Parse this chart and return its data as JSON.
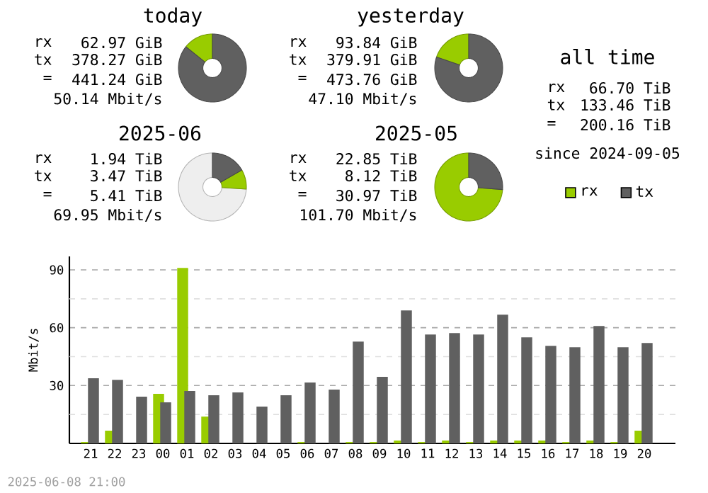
{
  "chart_data": [
    {
      "type": "donut",
      "title": "today",
      "categories": [
        null,
        null
      ],
      "values": [
        14.27,
        85.73
      ],
      "colors": [
        "#99cc00",
        "#606060"
      ],
      "annotations": [
        "rx",
        "62.97 GiB",
        "tx",
        "378.27 GiB",
        "=",
        "441.24 GiB",
        "50.14 Mbit/s"
      ]
    },
    {
      "type": "donut",
      "title": "yesterday",
      "categories": [
        null,
        null
      ],
      "values": [
        19.81,
        80.19
      ],
      "colors": [
        "#99cc00",
        "#606060"
      ],
      "annotations": [
        "rx",
        "93.84 GiB",
        "tx",
        "379.91 GiB",
        "=",
        "473.76 GiB",
        "47.10 Mbit/s"
      ]
    },
    {
      "type": "other",
      "title": "all time",
      "annotations": [
        "rx",
        "66.70 TiB",
        "tx",
        "133.46 TiB",
        "=",
        "200.16 TiB",
        "since 2024-09-05"
      ]
    },
    {
      "type": "donut",
      "title": "2025-06",
      "categories": [
        null,
        null,
        null
      ],
      "values": [
        74.0,
        9.3,
        16.7
      ],
      "colors": [
        "#eeeeee",
        "#99cc00",
        "#606060"
      ],
      "annotations": [
        "rx",
        "1.94 TiB",
        "tx",
        "3.47 TiB",
        "=",
        "5.41 TiB",
        "69.95 Mbit/s"
      ]
    },
    {
      "type": "donut",
      "title": "2025-05",
      "categories": [
        null,
        null
      ],
      "values": [
        73.78,
        26.22
      ],
      "colors": [
        "#99cc00",
        "#606060"
      ],
      "annotations": [
        "rx",
        "22.85 TiB",
        "tx",
        "8.12 TiB",
        "=",
        "30.97 TiB",
        "101.70 Mbit/s"
      ]
    },
    {
      "type": "bar",
      "ylabel": "Mbit/s",
      "categories": [
        "21",
        "22",
        "23",
        "00",
        "01",
        "02",
        "03",
        "04",
        "05",
        "06",
        "07",
        "08",
        "09",
        "10",
        "11",
        "12",
        "13",
        "14",
        "15",
        "16",
        "17",
        "18",
        "19",
        "20"
      ],
      "series": [
        {
          "name": "rx",
          "color": "#99cc00",
          "values": [
            0.7,
            6.6,
            0,
            25.7,
            91.0,
            13.9,
            0,
            0,
            0,
            0.7,
            0,
            0.7,
            0.7,
            1.5,
            0.7,
            1.5,
            0.7,
            1.5,
            1.5,
            1.5,
            0.7,
            1.5,
            0.7,
            6.6
          ]
        },
        {
          "name": "tx",
          "color": "#606060",
          "values": [
            33.8,
            33.0,
            24.2,
            21.3,
            27.2,
            25.0,
            26.4,
            19.1,
            25.0,
            31.6,
            27.9,
            52.8,
            34.5,
            69.0,
            56.5,
            57.2,
            56.5,
            66.8,
            55.0,
            50.6,
            49.9,
            60.9,
            49.9,
            52.1
          ]
        }
      ],
      "ylim": [
        0,
        97
      ],
      "yticks": [
        {
          "value": 15,
          "label": null
        },
        30,
        {
          "value": 45,
          "label": null
        },
        60,
        {
          "value": 75,
          "label": null
        },
        90
      ],
      "grid": "y",
      "legend": "top right",
      "annotations": [
        "2025-06-08 21:00"
      ]
    }
  ]
}
